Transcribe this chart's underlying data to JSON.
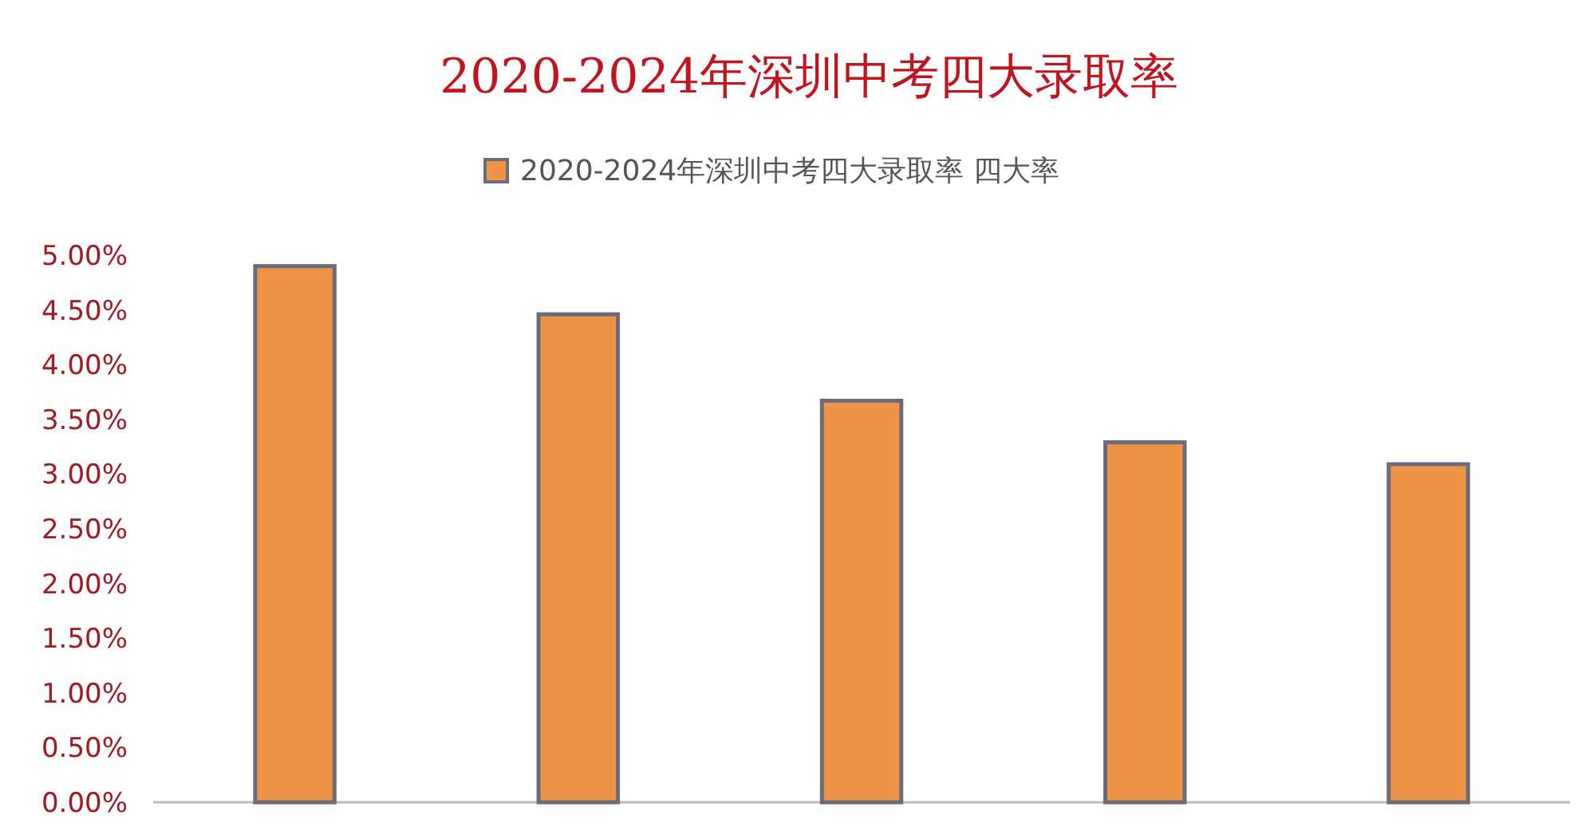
{
  "chart_data": {
    "type": "bar",
    "title": "2020-2024年深圳中考四大录取率",
    "categories": [
      null,
      null,
      null,
      null,
      null
    ],
    "series": [
      {
        "name": "2020-2024年深圳中考四大录取率 四大率",
        "color": "#ee9447",
        "values": [
          4.9,
          4.46,
          3.67,
          3.29,
          3.09
        ]
      }
    ],
    "ylim": [
      0,
      5
    ],
    "yticks": [
      {
        "value": 0,
        "label": "0.00%"
      },
      {
        "value": 0.5,
        "label": "0.50%"
      },
      {
        "value": 1,
        "label": "1.00%"
      },
      {
        "value": 1.5,
        "label": "1.50%"
      },
      {
        "value": 2,
        "label": "2.00%"
      },
      {
        "value": 2.5,
        "label": "2.50%"
      },
      {
        "value": 3,
        "label": "3.00%"
      },
      {
        "value": 3.5,
        "label": "3.50%"
      },
      {
        "value": 4,
        "label": "4.00%"
      },
      {
        "value": 4.5,
        "label": "4.50%"
      },
      {
        "value": 5,
        "label": "5.00%"
      }
    ],
    "grid": false,
    "legend": "top"
  }
}
